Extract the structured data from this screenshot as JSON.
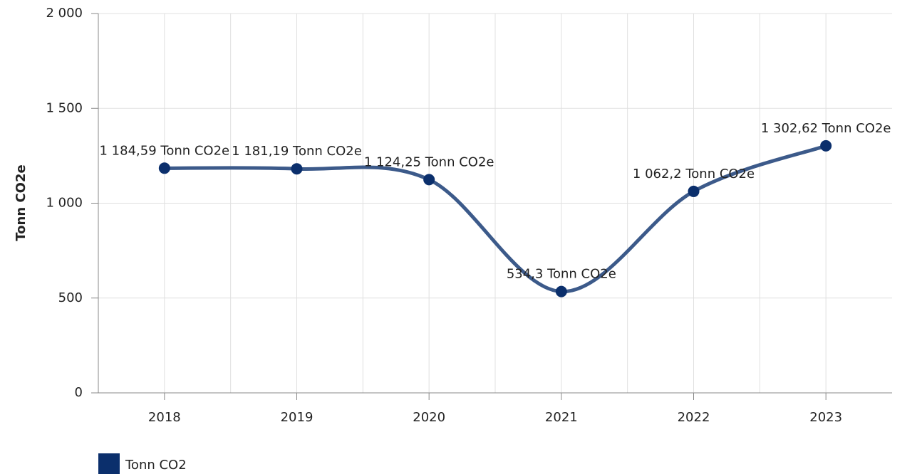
{
  "chart_data": {
    "type": "line",
    "y_label": "Tonn CO2e",
    "categories": [
      "2018",
      "2019",
      "2020",
      "2021",
      "2022",
      "2023"
    ],
    "series": [
      {
        "name": "Tonn CO2",
        "color": "#0b2f6c",
        "line_color": "#3c5a8a",
        "values": [
          1184.59,
          1181.19,
          1124.25,
          534.3,
          1062.2,
          1302.62
        ],
        "value_labels": [
          "1 184,59 Tonn CO2e",
          "1 181,19 Tonn CO2e",
          "1 124,25 Tonn CO2e",
          "534,3 Tonn CO2e",
          "1 062,2 Tonn CO2e",
          "1 302,62 Tonn CO2e"
        ]
      }
    ],
    "ylim": [
      0,
      2000
    ],
    "yticks": [
      0,
      500,
      {
        "value": 1000,
        "label": "1 000"
      },
      {
        "value": 1500,
        "label": "1 500"
      },
      {
        "value": 2000,
        "label": "2 000"
      }
    ],
    "grid": true,
    "legend": "bottom-left"
  }
}
